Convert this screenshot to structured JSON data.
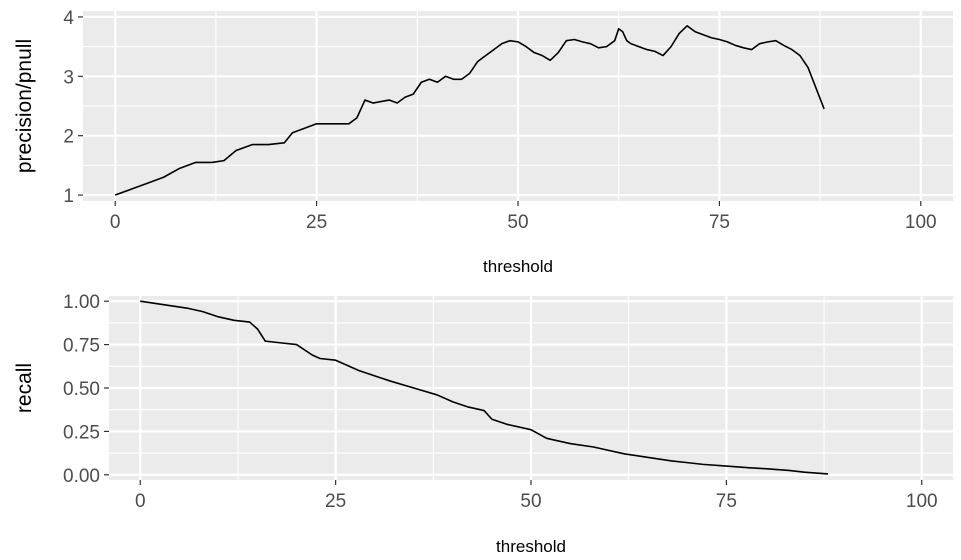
{
  "chart_data": [
    {
      "type": "line",
      "xlabel": "threshold",
      "ylabel": "precision/pnull",
      "xlim": [
        -4,
        104
      ],
      "ylim": [
        0.9,
        4.1
      ],
      "x_ticks": [
        0,
        25,
        50,
        75,
        100
      ],
      "y_ticks": [
        1,
        2,
        3,
        4
      ],
      "grid": true,
      "panel_background": "#ebebeb",
      "grid_color": "#ffffff",
      "line_color": "#000000",
      "series": [
        {
          "x": [
            0,
            2,
            4,
            6,
            8,
            10,
            12,
            13.5,
            15,
            17,
            19,
            21,
            22,
            24,
            25,
            27,
            28,
            29,
            30,
            31,
            32,
            34,
            35,
            36,
            37,
            38,
            39,
            40,
            41,
            42,
            43,
            44,
            45,
            46,
            47,
            48,
            49,
            50,
            51,
            52,
            53,
            54,
            55,
            56,
            57,
            58,
            59,
            60,
            61,
            62,
            62.5,
            63,
            63.5,
            64,
            65,
            66,
            67,
            68,
            69,
            70,
            71,
            72,
            73,
            74,
            75,
            76,
            77,
            78,
            79,
            80,
            81,
            82,
            83,
            84,
            85,
            86,
            87,
            88
          ],
          "y": [
            1.0,
            1.1,
            1.2,
            1.3,
            1.45,
            1.55,
            1.55,
            1.58,
            1.75,
            1.85,
            1.85,
            1.88,
            2.05,
            2.15,
            2.2,
            2.2,
            2.2,
            2.2,
            2.3,
            2.6,
            2.55,
            2.6,
            2.55,
            2.65,
            2.7,
            2.9,
            2.95,
            2.9,
            3.0,
            2.95,
            2.95,
            3.05,
            3.25,
            3.35,
            3.45,
            3.55,
            3.6,
            3.58,
            3.5,
            3.4,
            3.35,
            3.27,
            3.4,
            3.6,
            3.62,
            3.58,
            3.55,
            3.48,
            3.5,
            3.6,
            3.8,
            3.75,
            3.6,
            3.55,
            3.5,
            3.45,
            3.42,
            3.35,
            3.5,
            3.72,
            3.85,
            3.75,
            3.7,
            3.65,
            3.62,
            3.58,
            3.52,
            3.48,
            3.45,
            3.55,
            3.58,
            3.6,
            3.52,
            3.45,
            3.35,
            3.15,
            2.8,
            2.45
          ]
        }
      ]
    },
    {
      "type": "line",
      "xlabel": "threshold",
      "ylabel": "recall",
      "xlim": [
        -4,
        104
      ],
      "ylim": [
        -0.03,
        1.03
      ],
      "x_ticks": [
        0,
        25,
        50,
        75,
        100
      ],
      "y_ticks": [
        0.0,
        0.25,
        0.5,
        0.75,
        1.0
      ],
      "y_tick_labels": [
        "0.00",
        "0.25",
        "0.50",
        "0.75",
        "1.00"
      ],
      "grid": true,
      "panel_background": "#ebebeb",
      "grid_color": "#ffffff",
      "line_color": "#000000",
      "series": [
        {
          "x": [
            0,
            3,
            6,
            8,
            10,
            12,
            14,
            15,
            16,
            18,
            20,
            22,
            23,
            25,
            28,
            30,
            32,
            35,
            38,
            40,
            42,
            44,
            45,
            47,
            50,
            52,
            53,
            55,
            58,
            60,
            62,
            65,
            68,
            70,
            72,
            75,
            78,
            80,
            83,
            85,
            88
          ],
          "y": [
            1.0,
            0.98,
            0.96,
            0.94,
            0.91,
            0.89,
            0.88,
            0.84,
            0.77,
            0.76,
            0.75,
            0.69,
            0.67,
            0.66,
            0.6,
            0.57,
            0.54,
            0.5,
            0.46,
            0.42,
            0.39,
            0.37,
            0.32,
            0.29,
            0.26,
            0.21,
            0.2,
            0.18,
            0.16,
            0.14,
            0.12,
            0.1,
            0.08,
            0.07,
            0.06,
            0.05,
            0.04,
            0.035,
            0.025,
            0.015,
            0.005
          ]
        }
      ]
    }
  ]
}
